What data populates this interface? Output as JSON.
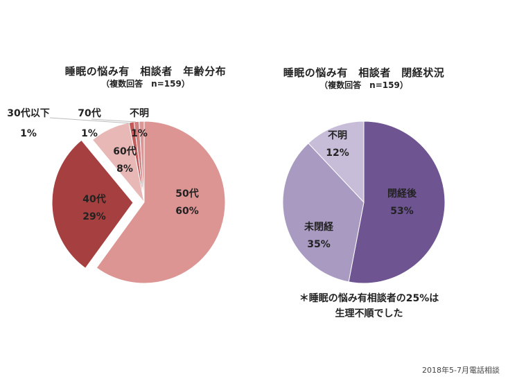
{
  "chart_data": [
    {
      "type": "pie",
      "title": "睡眠の悩み有　相談者　年齢分布",
      "subtitle": "（複数回答　n=159）",
      "categories": [
        "50代",
        "40代",
        "60代",
        "30代以下",
        "70代",
        "不明"
      ],
      "values": [
        60,
        29,
        8,
        1,
        1,
        1
      ],
      "labels": [
        "60%",
        "29%",
        "8%",
        "1%",
        "1%",
        "1%"
      ],
      "colors": [
        "#dc9593",
        "#a64040",
        "#e8b8b7",
        "#c45a5a",
        "#cf7f7e",
        "#d99897"
      ]
    },
    {
      "type": "pie",
      "title": "睡眠の悩み有　相談者　閉経状況",
      "subtitle": "（複数回答　n=159）",
      "categories": [
        "閉経後",
        "未閉経",
        "不明"
      ],
      "values": [
        53,
        35,
        12
      ],
      "labels": [
        "53%",
        "35%",
        "12%"
      ],
      "colors": [
        "#6e5491",
        "#a99ac2",
        "#c7bdd8"
      ]
    }
  ],
  "footnote": {
    "line1": "＊睡眠の悩み有相談者の25%は",
    "line2": "生理不順でした"
  },
  "source": "2018年5-7月電話相談"
}
